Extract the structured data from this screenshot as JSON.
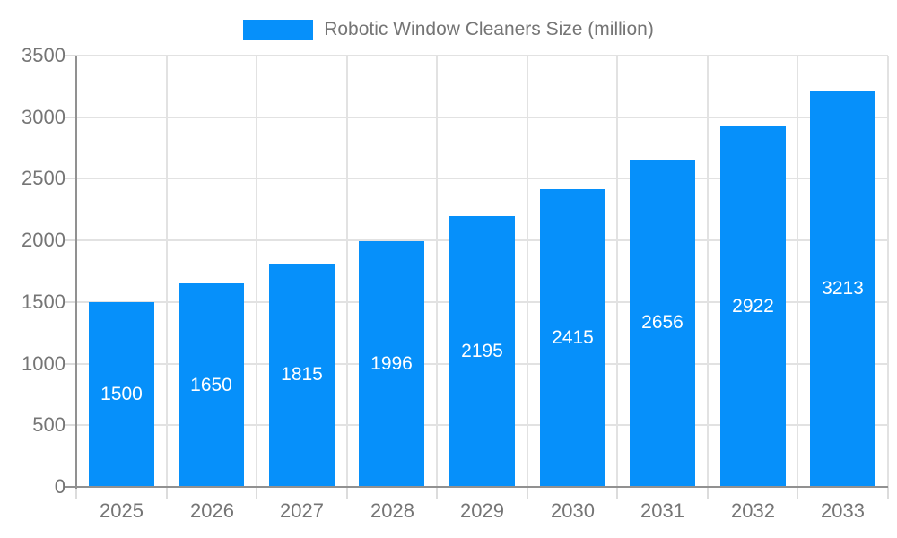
{
  "legend": {
    "label": "Robotic Window Cleaners Size (million)"
  },
  "colors": {
    "bar": "#0690FA",
    "bar_label_text": "#ffffff",
    "axis_text": "#757575",
    "grid_line": "#e2e2e2",
    "axis_line": "#919191",
    "tick_mark": "#dcdcdc",
    "background": "#ffffff"
  },
  "chart_data": {
    "type": "bar",
    "title": "Robotic Window Cleaners Size (million)",
    "categories": [
      "2025",
      "2026",
      "2027",
      "2028",
      "2029",
      "2030",
      "2031",
      "2032",
      "2033"
    ],
    "values": [
      1500,
      1650,
      1815,
      1996,
      2195,
      2415,
      2656,
      2922,
      3213
    ],
    "series_name": "Robotic Window Cleaners Size (million)",
    "xlabel": "",
    "ylabel": "",
    "ylim": [
      0,
      3500
    ],
    "yticks": [
      0,
      500,
      1000,
      1500,
      2000,
      2500,
      3000,
      3500
    ],
    "grid": true,
    "legend_position": "top",
    "bar_label_position": "inside-center"
  }
}
